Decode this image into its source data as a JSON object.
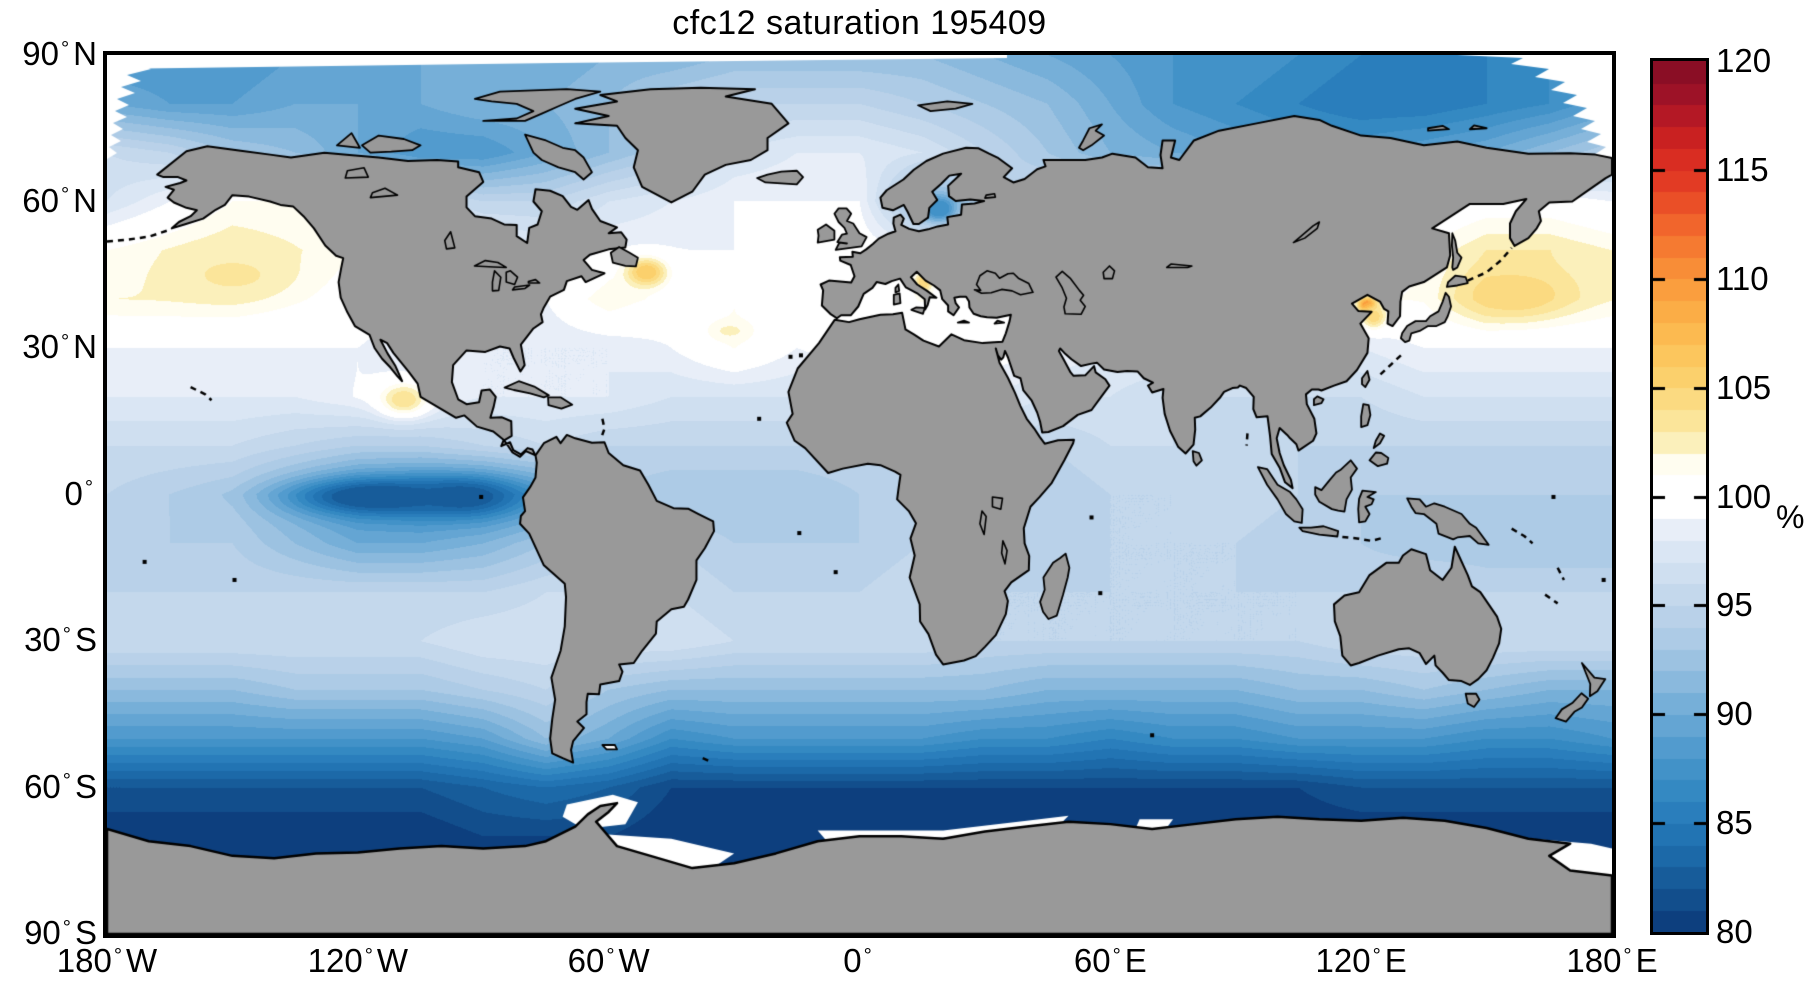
{
  "title": "cfc12 saturation 195409",
  "axes": {
    "degree_symbol": "°",
    "lat_ticks": [
      {
        "deg": "90",
        "hem": "N"
      },
      {
        "deg": "60",
        "hem": "N"
      },
      {
        "deg": "30",
        "hem": "N"
      },
      {
        "deg": "0",
        "hem": ""
      },
      {
        "deg": "30",
        "hem": "S"
      },
      {
        "deg": "60",
        "hem": "S"
      },
      {
        "deg": "90",
        "hem": "S"
      }
    ],
    "lon_ticks": [
      {
        "deg": "180",
        "hem": "W"
      },
      {
        "deg": "120",
        "hem": "W"
      },
      {
        "deg": "60",
        "hem": "W"
      },
      {
        "deg": "0",
        "hem": ""
      },
      {
        "deg": "60",
        "hem": "E"
      },
      {
        "deg": "120",
        "hem": "E"
      },
      {
        "deg": "180",
        "hem": "E"
      }
    ]
  },
  "colorbar": {
    "unit_label": "%",
    "min": 80,
    "max": 120,
    "band_step": 1,
    "tick_interval": 5,
    "tick_labels": [
      "120",
      "115",
      "110",
      "105",
      "100",
      "95",
      "90",
      "85",
      "80"
    ]
  },
  "chart_data": {
    "type": "heatmap",
    "title": "cfc12 saturation 195409",
    "units": "%",
    "projection": "equirectangular",
    "lon_range": [
      -180,
      180
    ],
    "lat_range": [
      -90,
      90
    ],
    "land_color": "#999999",
    "coast_color": "#000000",
    "ice_color": "#ffffff",
    "value_range": [
      80,
      120
    ],
    "colormap_stops": [
      "#0d3f7e",
      "#124e8c",
      "#175c9a",
      "#1c69a8",
      "#2274b3",
      "#2a7ebc",
      "#3489c2",
      "#4292c8",
      "#529bce",
      "#64a5d3",
      "#76afd8",
      "#8ab9dd",
      "#9cc2e1",
      "#adcbe6",
      "#b9d1e9",
      "#c4d8ec",
      "#cfdff0",
      "#dae6f4",
      "#e8eef8",
      "#ffffff",
      "#ffffff",
      "#fffdf0",
      "#fbf0bb",
      "#fbe59a",
      "#fbda81",
      "#fbd06c",
      "#fcc65d",
      "#fcba50",
      "#fbad46",
      "#fa9e3e",
      "#f88d37",
      "#f57a31",
      "#f1652c",
      "#ea4f27",
      "#e23b24",
      "#d92d22",
      "#c92121",
      "#b41825",
      "#9d1227",
      "#8a0e25",
      "#7a0b22"
    ],
    "grid": {
      "lat_step": 10,
      "lon_step": 15,
      "lats": [
        90,
        80,
        70,
        60,
        50,
        40,
        30,
        20,
        10,
        0,
        -10,
        -20,
        -30,
        -40,
        -50,
        -60,
        -70,
        -80,
        -90
      ],
      "lons": [
        -180,
        -165,
        -150,
        -135,
        -120,
        -105,
        -90,
        -75,
        -60,
        -45,
        -30,
        -15,
        0,
        15,
        30,
        45,
        60,
        75,
        90,
        105,
        120,
        135,
        150,
        165,
        180
      ],
      "values": [
        [
          88,
          88,
          88,
          89,
          89,
          90,
          90,
          90,
          91,
          91,
          92,
          92,
          92,
          92,
          91,
          90,
          89,
          88,
          88,
          87,
          86,
          86,
          86,
          87,
          88
        ],
        [
          90,
          89,
          89,
          90,
          90,
          90,
          91,
          91,
          92,
          94,
          95,
          95,
          95,
          94,
          93,
          92,
          90,
          88,
          87,
          86,
          85,
          85,
          86,
          87,
          89
        ],
        [
          96,
          95,
          93,
          92,
          90,
          88,
          88,
          90,
          92,
          94,
          97,
          98,
          98,
          97,
          95,
          93,
          91,
          90,
          89,
          88,
          88,
          89,
          90,
          92,
          94
        ],
        [
          97,
          99,
          101,
          101,
          100,
          97,
          95,
          95,
          97,
          98,
          99,
          99,
          99,
          91,
          94,
          96,
          97,
          97,
          97,
          97,
          98,
          99,
          100,
          100,
          99
        ],
        [
          101,
          102,
          103,
          102,
          101,
          100,
          99,
          98,
          99,
          99,
          99,
          100,
          100,
          99,
          99,
          99,
          99,
          99,
          99,
          99,
          100,
          101,
          103,
          103,
          102
        ],
        [
          102,
          102,
          102,
          101,
          100,
          99,
          99,
          99,
          102,
          100,
          101,
          100,
          100,
          101,
          100,
          99,
          98,
          98,
          98,
          98,
          101,
          101,
          104,
          103,
          102
        ],
        [
          99,
          99,
          99,
          99,
          99,
          98,
          98,
          98,
          98,
          99,
          101,
          99,
          100,
          100,
          100,
          99,
          98,
          98,
          98,
          98,
          98,
          99,
          99,
          99,
          99
        ],
        [
          98,
          98,
          98,
          98,
          99,
          99,
          98,
          98,
          98,
          97,
          97,
          97,
          97,
          97,
          98,
          97,
          97,
          96,
          96,
          96,
          96,
          97,
          97,
          97,
          97
        ],
        [
          96,
          96,
          96,
          95,
          94,
          94,
          95,
          96,
          95,
          95,
          95,
          95,
          95,
          96,
          96,
          95,
          96,
          96,
          95,
          95,
          95,
          95,
          95,
          95,
          95
        ],
        [
          95,
          94,
          93,
          90,
          87,
          86,
          86,
          88,
          94,
          93,
          93,
          93,
          94,
          95,
          95,
          94,
          95,
          95,
          96,
          95,
          94,
          94,
          94,
          94,
          94
        ],
        [
          94,
          94,
          94,
          92,
          90,
          90,
          91,
          93,
          95,
          95,
          94,
          94,
          94,
          95,
          95,
          94,
          95,
          95,
          95,
          94,
          94,
          93,
          93,
          93,
          93
        ],
        [
          95,
          95,
          95,
          95,
          95,
          95,
          95,
          96,
          96,
          96,
          95,
          95,
          95,
          96,
          95,
          95,
          95,
          95,
          95,
          95,
          95,
          96,
          95,
          95,
          95
        ],
        [
          96,
          96,
          96,
          96,
          96,
          96,
          97,
          97,
          97,
          97,
          96,
          96,
          96,
          96,
          95,
          95,
          95,
          95,
          95,
          95,
          96,
          96,
          96,
          96,
          96
        ],
        [
          92,
          92,
          92,
          93,
          93,
          93,
          94,
          95,
          93,
          92,
          92,
          92,
          92,
          92,
          92,
          91,
          91,
          91,
          91,
          92,
          92,
          93,
          92,
          91,
          91
        ],
        [
          88,
          88,
          88,
          88,
          88,
          88,
          89,
          92,
          90,
          87,
          88,
          88,
          88,
          88,
          87,
          87,
          86,
          87,
          87,
          88,
          88,
          88,
          87,
          87,
          88
        ],
        [
          82,
          82,
          82,
          82,
          82,
          82,
          83,
          84,
          83,
          81,
          81,
          81,
          81,
          81,
          81,
          81,
          81,
          81,
          81,
          81,
          82,
          82,
          82,
          82,
          82
        ],
        [
          80,
          80,
          80,
          80,
          80,
          80,
          81,
          81,
          81,
          80,
          80,
          80,
          80,
          80,
          80,
          80,
          80,
          80,
          80,
          80,
          80,
          80,
          80,
          80,
          80
        ],
        [
          80,
          80,
          80,
          80,
          80,
          80,
          80,
          80,
          80,
          80,
          80,
          80,
          80,
          80,
          80,
          80,
          80,
          80,
          80,
          80,
          80,
          80,
          80,
          80,
          80
        ],
        [
          80,
          80,
          80,
          80,
          80,
          80,
          80,
          80,
          80,
          80,
          80,
          80,
          80,
          80,
          80,
          80,
          80,
          80,
          80,
          80,
          80,
          80,
          80,
          80,
          80
        ]
      ]
    },
    "hotspots": [
      {
        "lon": 121.5,
        "lat": 38.8,
        "value": 111,
        "rlon": 2,
        "rlat": 1.4
      },
      {
        "lon": 123,
        "lat": 36.5,
        "value": 104,
        "rlon": 3,
        "rlat": 2.5
      },
      {
        "lon": 157,
        "lat": 41,
        "value": 104.5,
        "rlon": 12,
        "rlat": 4.5
      },
      {
        "lon": -51,
        "lat": 45.5,
        "value": 105,
        "rlon": 5,
        "rlat": 3
      },
      {
        "lon": 15.3,
        "lat": 43.5,
        "value": 104.5,
        "rlon": 2,
        "rlat": 2
      },
      {
        "lon": -109,
        "lat": 19.5,
        "value": 103,
        "rlon": 6,
        "rlat": 3.5
      },
      {
        "lon": -31,
        "lat": 33.5,
        "value": 102,
        "rlon": 5,
        "rlat": 2
      },
      {
        "lon": -150,
        "lat": 45,
        "value": 103,
        "rlon": 14,
        "rlat": 5
      },
      {
        "lon": 19,
        "lat": 58.5,
        "value": 87,
        "rlon": 4,
        "rlat": 2.5
      },
      {
        "lon": -115,
        "lat": -0.5,
        "value": 82,
        "rlon": 18,
        "rlat": 3.5
      },
      {
        "lon": -95,
        "lat": -0.5,
        "value": 82.5,
        "rlon": 12,
        "rlat": 3.5
      }
    ]
  }
}
